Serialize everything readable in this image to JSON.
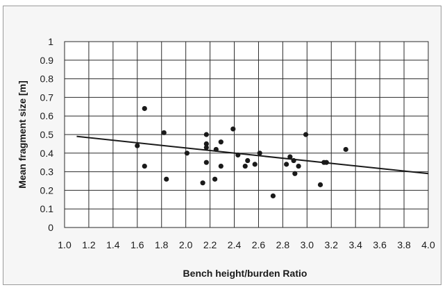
{
  "chart_data": {
    "type": "scatter",
    "title": "",
    "xlabel": "Bench height/burden Ratio",
    "ylabel": "Mean fragment size [m]",
    "xlim": [
      1.0,
      4.0
    ],
    "ylim": [
      0,
      1
    ],
    "x_ticks": [
      "1.0",
      "1.2",
      "1.4",
      "1.6",
      "1.8",
      "2.0",
      "2.2",
      "2.4",
      "2.6",
      "2.8",
      "3.0",
      "3.2",
      "3.4",
      "3.6",
      "3.8",
      "4.0"
    ],
    "y_ticks": [
      "0",
      "0.1",
      "0.2",
      "0.3",
      "0.4",
      "0.5",
      "0.6",
      "0.7",
      "0.8",
      "0.9",
      "1"
    ],
    "grid": true,
    "legend": "none",
    "colors": {
      "points": "#1a1a1a",
      "trendline": "#1a1a1a",
      "grid": "#2a2a2a",
      "plot_background": "#ffffff",
      "chart_background": "#f6f6f6"
    },
    "series": [
      {
        "points": [
          {
            "x": 1.6,
            "y": 0.44
          },
          {
            "x": 1.66,
            "y": 0.64
          },
          {
            "x": 1.66,
            "y": 0.33
          },
          {
            "x": 1.82,
            "y": 0.51
          },
          {
            "x": 1.84,
            "y": 0.26
          },
          {
            "x": 2.01,
            "y": 0.4
          },
          {
            "x": 2.14,
            "y": 0.24
          },
          {
            "x": 2.17,
            "y": 0.5
          },
          {
            "x": 2.17,
            "y": 0.45
          },
          {
            "x": 2.17,
            "y": 0.43
          },
          {
            "x": 2.17,
            "y": 0.35
          },
          {
            "x": 2.24,
            "y": 0.26
          },
          {
            "x": 2.25,
            "y": 0.42
          },
          {
            "x": 2.29,
            "y": 0.46
          },
          {
            "x": 2.29,
            "y": 0.33
          },
          {
            "x": 2.39,
            "y": 0.53
          },
          {
            "x": 2.43,
            "y": 0.39
          },
          {
            "x": 2.49,
            "y": 0.33
          },
          {
            "x": 2.51,
            "y": 0.36
          },
          {
            "x": 2.57,
            "y": 0.34
          },
          {
            "x": 2.61,
            "y": 0.4
          },
          {
            "x": 2.72,
            "y": 0.17
          },
          {
            "x": 2.83,
            "y": 0.34
          },
          {
            "x": 2.86,
            "y": 0.38
          },
          {
            "x": 2.89,
            "y": 0.36
          },
          {
            "x": 2.9,
            "y": 0.29
          },
          {
            "x": 2.93,
            "y": 0.33
          },
          {
            "x": 2.99,
            "y": 0.5
          },
          {
            "x": 3.11,
            "y": 0.23
          },
          {
            "x": 3.14,
            "y": 0.35
          },
          {
            "x": 3.16,
            "y": 0.35
          },
          {
            "x": 3.32,
            "y": 0.42
          }
        ]
      }
    ],
    "trendline": {
      "x": [
        1.1,
        4.0
      ],
      "y": [
        0.49,
        0.29
      ]
    }
  }
}
